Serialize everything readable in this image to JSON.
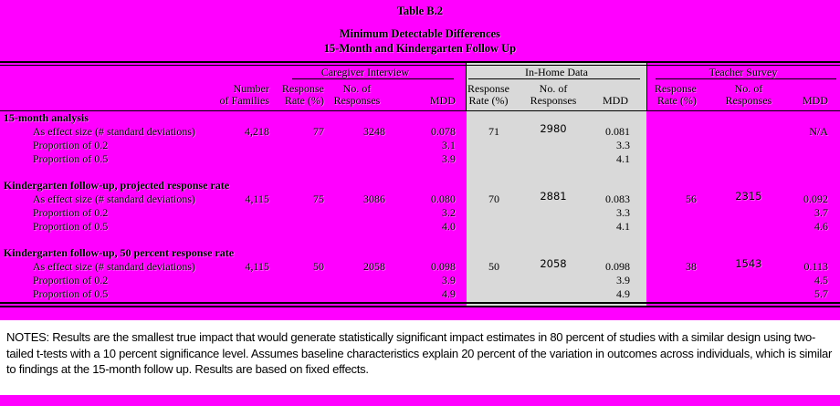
{
  "colors": {
    "background_magenta": "#FF00FF",
    "inhome_column_gray": "#D9D9D9",
    "notes_background": "#FFFFFF",
    "text": "#000000"
  },
  "title": {
    "table_number": "Table B.2",
    "line1": "Minimum Detectable Differences",
    "line2": "15-Month and Kindergarten Follow Up"
  },
  "header": {
    "families_line1": "Number",
    "families_line2": "of Families",
    "groups": {
      "caregiver": "Caregiver Interview",
      "inhome": "In-Home Data",
      "teacher": "Teacher Survey"
    },
    "sub": {
      "rate_line1": "Response",
      "rate_line2": "Rate (%)",
      "resp_line1": "No. of",
      "resp_line2": "Responses",
      "mdd": "MDD"
    }
  },
  "rows": [
    {
      "type": "section",
      "label": "15-month analysis"
    },
    {
      "type": "data",
      "label": "As effect size (# standard deviations)",
      "fam": "4,218",
      "cg_rate": "77",
      "cg_resp": "3248",
      "cg_mdd": "0.078",
      "ih_rate": "71",
      "ih_resp": "2980",
      "ih_mdd": "0.081",
      "ts_rate": "",
      "ts_resp": "",
      "ts_mdd": "N/A"
    },
    {
      "type": "data",
      "label": "Proportion of 0.2",
      "fam": "",
      "cg_rate": "",
      "cg_resp": "",
      "cg_mdd": "3.1",
      "ih_rate": "",
      "ih_resp": "",
      "ih_mdd": "3.3",
      "ts_rate": "",
      "ts_resp": "",
      "ts_mdd": ""
    },
    {
      "type": "data",
      "label": "Proportion of 0.5",
      "fam": "",
      "cg_rate": "",
      "cg_resp": "",
      "cg_mdd": "3.9",
      "ih_rate": "",
      "ih_resp": "",
      "ih_mdd": "4.1",
      "ts_rate": "",
      "ts_resp": "",
      "ts_mdd": ""
    },
    {
      "type": "spacer"
    },
    {
      "type": "section",
      "label": "Kindergarten follow-up, projected response rate"
    },
    {
      "type": "data",
      "label": "As effect size (# standard deviations)",
      "fam": "4,115",
      "cg_rate": "75",
      "cg_resp": "3086",
      "cg_mdd": "0.080",
      "ih_rate": "70",
      "ih_resp": "2881",
      "ih_mdd": "0.083",
      "ts_rate": "56",
      "ts_resp": "2315",
      "ts_mdd": "0.092"
    },
    {
      "type": "data",
      "label": "Proportion of 0.2",
      "fam": "",
      "cg_rate": "",
      "cg_resp": "",
      "cg_mdd": "3.2",
      "ih_rate": "",
      "ih_resp": "",
      "ih_mdd": "3.3",
      "ts_rate": "",
      "ts_resp": "",
      "ts_mdd": "3.7"
    },
    {
      "type": "data",
      "label": "Proportion of 0.5",
      "fam": "",
      "cg_rate": "",
      "cg_resp": "",
      "cg_mdd": "4.0",
      "ih_rate": "",
      "ih_resp": "",
      "ih_mdd": "4.1",
      "ts_rate": "",
      "ts_resp": "",
      "ts_mdd": "4.6"
    },
    {
      "type": "spacer"
    },
    {
      "type": "section",
      "label": "Kindergarten follow-up, 50 percent response rate"
    },
    {
      "type": "data",
      "label": "As effect size (# standard deviations)",
      "fam": "4,115",
      "cg_rate": "50",
      "cg_resp": "2058",
      "cg_mdd": "0.098",
      "ih_rate": "50",
      "ih_resp": "2058",
      "ih_mdd": "0.098",
      "ts_rate": "38",
      "ts_resp": "1543",
      "ts_mdd": "0.113"
    },
    {
      "type": "data",
      "label": "Proportion of 0.2",
      "fam": "",
      "cg_rate": "",
      "cg_resp": "",
      "cg_mdd": "3.9",
      "ih_rate": "",
      "ih_resp": "",
      "ih_mdd": "3.9",
      "ts_rate": "",
      "ts_resp": "",
      "ts_mdd": "4.5"
    },
    {
      "type": "data",
      "label": "Proportion of 0.5",
      "fam": "",
      "cg_rate": "",
      "cg_resp": "",
      "cg_mdd": "4.9",
      "ih_rate": "",
      "ih_resp": "",
      "ih_mdd": "4.9",
      "ts_rate": "",
      "ts_resp": "",
      "ts_mdd": "5.7"
    }
  ],
  "notes": {
    "line1": "NOTES: Results are the smallest true impact that would generate statistically significant impact estimates in 80 percent of studies with a similar design using two-",
    "line2": "tailed t-tests with a 10 percent significance level. Assumes baseline characteristics explain 20 percent of the variation in outcomes across individuals, which is similar",
    "line3": "to findings at the 15-month follow up. Results are based on fixed effects."
  }
}
